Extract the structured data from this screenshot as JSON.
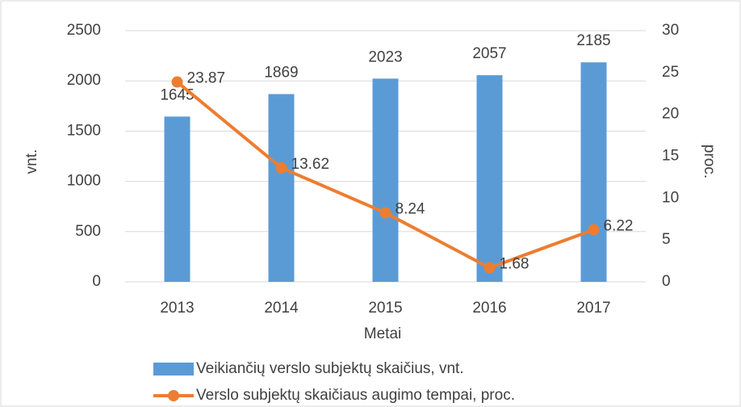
{
  "chart_data": {
    "type": "combo",
    "x_label": "Metai",
    "y_label": "vnt.",
    "y2_label": "proc.",
    "categories": [
      "2013",
      "2014",
      "2015",
      "2016",
      "2017"
    ],
    "series": [
      {
        "name": "Veikiančių verslo subjektų skaičius, vnt.",
        "type": "bar",
        "color": "#5b9bd5",
        "values": [
          1645,
          1869,
          2023,
          2057,
          2185
        ]
      },
      {
        "name": "Verslo subjektų skaičiaus augimo tempai, proc.",
        "type": "line",
        "axis": "y2",
        "color": "#ed7d31",
        "values": [
          23.87,
          13.62,
          8.24,
          1.68,
          6.22
        ]
      }
    ],
    "ylim": [
      0,
      2500
    ],
    "yticks": [
      0,
      500,
      1000,
      1500,
      2000,
      2500
    ],
    "y2lim": [
      0,
      30
    ],
    "y2ticks": [
      0,
      5,
      10,
      15,
      20,
      25,
      30
    ],
    "grid": true,
    "legend": "bottom"
  }
}
